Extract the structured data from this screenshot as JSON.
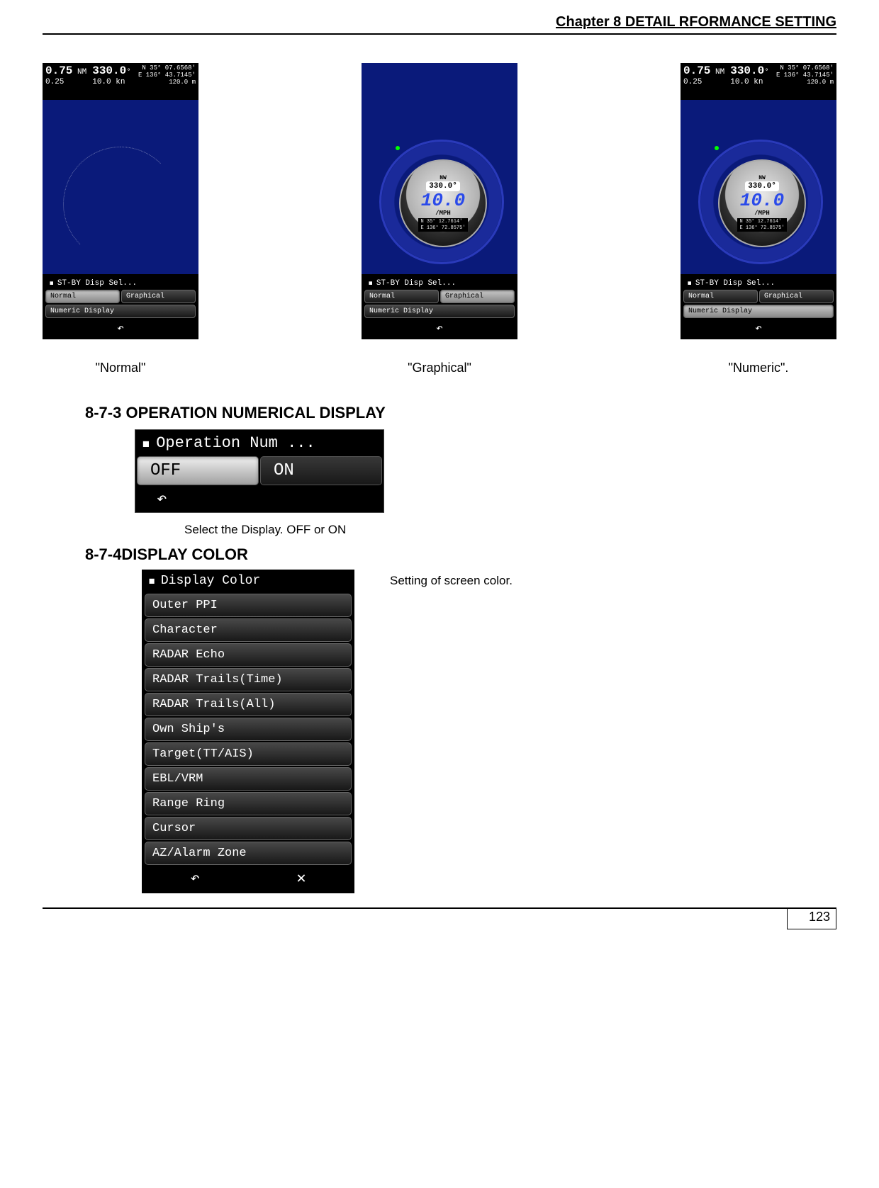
{
  "header": {
    "chapter_title": "Chapter 8  DETAIL RFORMANCE SETTING"
  },
  "radar_top": {
    "range_big": "0.75",
    "range_unit": "NM",
    "range_step": "0.25",
    "heading_big": "330.0",
    "heading_deg": "°",
    "speed": "10.0 kn",
    "lat": "N  35° 07.6568'",
    "lon": "E 136° 43.7145'",
    "depth": "120.0 m"
  },
  "gauge": {
    "heading": "330.0°",
    "speed_value": "10.0",
    "speed_unit": "/MPH",
    "lat2": "N  35°  12.7614'",
    "lon2": "E 136°  72.8575'"
  },
  "stby_menu": {
    "title": "ST-BY Disp Sel...",
    "btn_normal": "Normal",
    "btn_graphical": "Graphical",
    "btn_numeric": "Numeric Display"
  },
  "captions": {
    "c1": "\"Normal\"",
    "c2": "\"Graphical\"",
    "c3": "\"Numeric\"."
  },
  "section1": {
    "heading": "8-7-3 OPERATION NUMERICAL DISPLAY"
  },
  "opnum": {
    "title": "Operation Num ...",
    "off": "OFF",
    "on": "ON",
    "caption": "Select the Display. OFF or ON"
  },
  "section2": {
    "heading": "8-7-4DISPLAY COLOR"
  },
  "color_menu": {
    "title": "Display Color",
    "side_note": "Setting of screen color.",
    "items": [
      "Outer PPI",
      "Character",
      "RADAR Echo",
      "RADAR Trails(Time)",
      "RADAR Trails(All)",
      "Own Ship's",
      "Target(TT/AIS)",
      "EBL/VRM",
      "Range Ring",
      "Cursor",
      "AZ/Alarm Zone"
    ]
  },
  "footer": {
    "page_number": "123"
  }
}
